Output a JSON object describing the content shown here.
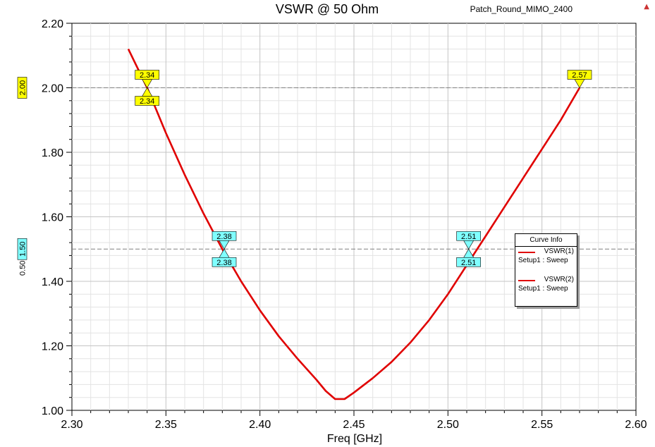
{
  "project_label": "Patch_Round_MIMO_2400",
  "chart_data": {
    "type": "line",
    "title": "VSWR @ 50 Ohm",
    "xlabel": "Freq [GHz]",
    "ylabel": "",
    "xlim": [
      2.3,
      2.6
    ],
    "ylim": [
      1.0,
      2.2
    ],
    "x_ticks": [
      "2.30",
      "2.35",
      "2.40",
      "2.45",
      "2.50",
      "2.55",
      "2.60"
    ],
    "y_ticks": [
      "1.00",
      "1.20",
      "1.40",
      "1.60",
      "1.80",
      "2.00",
      "2.20"
    ],
    "grid": true,
    "series": [
      {
        "name": "VSWR(1)",
        "color": "#e00000",
        "x": [
          2.33,
          2.34,
          2.35,
          2.36,
          2.37,
          2.38,
          2.39,
          2.4,
          2.41,
          2.42,
          2.43,
          2.435,
          2.44,
          2.445,
          2.45,
          2.46,
          2.47,
          2.48,
          2.49,
          2.5,
          2.51,
          2.52,
          2.53,
          2.54,
          2.55,
          2.56,
          2.57
        ],
        "y": [
          2.12,
          2.0,
          1.86,
          1.73,
          1.61,
          1.5,
          1.4,
          1.31,
          1.23,
          1.16,
          1.095,
          1.06,
          1.035,
          1.035,
          1.055,
          1.1,
          1.15,
          1.21,
          1.28,
          1.36,
          1.45,
          1.54,
          1.63,
          1.72,
          1.81,
          1.9,
          2.0
        ]
      },
      {
        "name": "VSWR(2)",
        "color": "#e00000",
        "x": [
          2.33,
          2.34,
          2.35,
          2.36,
          2.37,
          2.38,
          2.39,
          2.4,
          2.41,
          2.42,
          2.43,
          2.435,
          2.44,
          2.445,
          2.45,
          2.46,
          2.47,
          2.48,
          2.49,
          2.5,
          2.51,
          2.52,
          2.53,
          2.54,
          2.55,
          2.56,
          2.57
        ],
        "y": [
          2.12,
          2.0,
          1.86,
          1.73,
          1.61,
          1.5,
          1.4,
          1.31,
          1.23,
          1.16,
          1.095,
          1.06,
          1.035,
          1.035,
          1.055,
          1.1,
          1.15,
          1.21,
          1.28,
          1.36,
          1.45,
          1.54,
          1.63,
          1.72,
          1.81,
          1.9,
          2.0
        ]
      }
    ],
    "h_markers": [
      {
        "y": 2.0,
        "label": "2.00",
        "color": "#ffff00"
      },
      {
        "y": 1.5,
        "label": "1.50",
        "color": "#80ffff",
        "delta": "0.50"
      }
    ],
    "markers": [
      {
        "label": "2.34",
        "x": 2.34,
        "y": 2.0,
        "color": "#ffff00",
        "pos": "above"
      },
      {
        "label": "2.34",
        "x": 2.34,
        "y": 2.0,
        "color": "#ffff00",
        "pos": "below"
      },
      {
        "label": "2.57",
        "x": 2.57,
        "y": 2.0,
        "color": "#ffff00",
        "pos": "above"
      },
      {
        "label": "2.38",
        "x": 2.381,
        "y": 1.5,
        "color": "#80ffff",
        "pos": "above"
      },
      {
        "label": "2.38",
        "x": 2.381,
        "y": 1.5,
        "color": "#80ffff",
        "pos": "below"
      },
      {
        "label": "2.51",
        "x": 2.511,
        "y": 1.5,
        "color": "#80ffff",
        "pos": "above"
      },
      {
        "label": "2.51",
        "x": 2.511,
        "y": 1.5,
        "color": "#80ffff",
        "pos": "below"
      }
    ]
  },
  "legend": {
    "title": "Curve Info",
    "entries": [
      {
        "name": "VSWR(1)",
        "setup": "Setup1 : Sweep"
      },
      {
        "name": "VSWR(2)",
        "setup": "Setup1 : Sweep"
      }
    ]
  }
}
